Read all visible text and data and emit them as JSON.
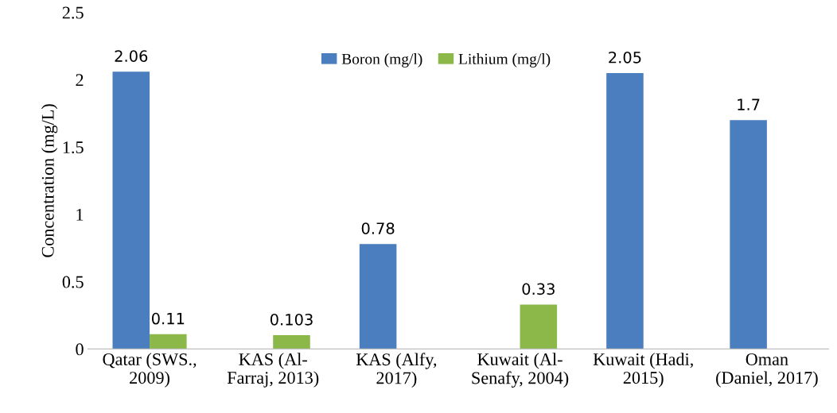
{
  "chart_data": {
    "type": "bar",
    "categories": [
      "Qatar (SWS.,\n2009)",
      "KAS (Al-\nFarraj, 2013)",
      "KAS (Alfy,\n2017)",
      "Kuwait (Al-\nSenafy, 2004)",
      "Kuwait (Hadi,\n2015)",
      "Oman\n(Daniel, 2017)"
    ],
    "series": [
      {
        "name": "Boron (mg/l)",
        "color": "#4a7ebf",
        "values": [
          2.06,
          null,
          0.78,
          null,
          2.05,
          1.7
        ]
      },
      {
        "name": "Lithium (mg/l)",
        "color": "#8cb84a",
        "values": [
          0.11,
          0.103,
          null,
          0.33,
          null,
          null
        ]
      }
    ],
    "ylabel": "Concentration (mg/L)",
    "ylim": [
      0,
      2.5
    ],
    "yticks": [
      0,
      0.5,
      1,
      1.5,
      2,
      2.5
    ],
    "data_labels": true,
    "grid": false,
    "legend": "top"
  }
}
